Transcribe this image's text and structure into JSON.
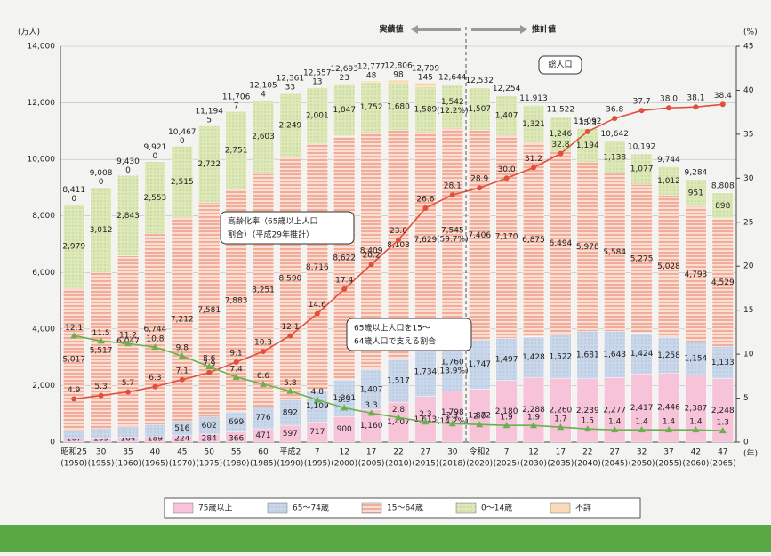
{
  "chart_data": {
    "type": "bar",
    "stacked": true,
    "y_unit": "(万人)",
    "y2_unit": "(%)",
    "x_unit": "(年)",
    "actual_label": "実績値",
    "projected_label": "推計値",
    "total_callout": "総人口",
    "aging_callout": [
      "高齢化率（65歳以上人口",
      "割合）（平成29年推計）"
    ],
    "support_callout": [
      "65歳以上人口を15～",
      "64歳人口で支える割合"
    ],
    "categories": [
      "昭和25",
      "30",
      "35",
      "40",
      "45",
      "50",
      "55",
      "60",
      "平成2",
      "7",
      "12",
      "17",
      "22",
      "27",
      "30",
      "令和2",
      "7",
      "12",
      "17",
      "22",
      "27",
      "32",
      "37",
      "42",
      "47"
    ],
    "category_years": [
      "(1950)",
      "(1955)",
      "(1960)",
      "(1965)",
      "(1970)",
      "(1975)",
      "(1980)",
      "(1985)",
      "(1990)",
      "(1995)",
      "(2000)",
      "(2005)",
      "(2010)",
      "(2015)",
      "(2018)",
      "(2020)",
      "(2025)",
      "(2030)",
      "(2035)",
      "(2040)",
      "(2045)",
      "(2050)",
      "(2055)",
      "(2060)",
      "(2065)"
    ],
    "totals": [
      8411,
      9008,
      9430,
      9921,
      10467,
      11194,
      11706,
      12105,
      12361,
      12557,
      12693,
      12777,
      12806,
      12709,
      12644,
      12532,
      12254,
      11913,
      11522,
      11092,
      10642,
      10192,
      9744,
      9284,
      8808
    ],
    "total_labels": [
      "8,411",
      "9,008",
      "9,430",
      "9,921",
      "10,467",
      "11,194",
      "11,706",
      "12,105",
      "12,361",
      "12,557",
      "12,693",
      "12,777",
      "12,806",
      "12,709",
      "12,644",
      "12,532",
      "12,254",
      "11,913",
      "11,522",
      "11,092",
      "10,642",
      "10,192",
      "9,744",
      "9,284",
      "8,808"
    ],
    "share_labels_2018": [
      "(14.2%)",
      "(13.9%)",
      "(59.7%)",
      "(12.2%)"
    ],
    "series": [
      {
        "name": "75歳以上",
        "type": "bar",
        "color": "#f6c3d9",
        "pattern": "none",
        "values": [
          107,
          139,
          164,
          189,
          224,
          284,
          366,
          471,
          597,
          717,
          900,
          1160,
          1407,
          1613,
          1798,
          1872,
          2180,
          2288,
          2260,
          2239,
          2277,
          2417,
          2446,
          2387,
          2248
        ],
        "value_labels": [
          "107",
          "139",
          "164",
          "189",
          "224",
          "284",
          "366",
          "471",
          "597",
          "717",
          "900",
          "1,160",
          "1,407",
          "1,613",
          "1,798",
          "1,872",
          "2,180",
          "2,288",
          "2,260",
          "2,239",
          "2,277",
          "2,417",
          "2,446",
          "2,387",
          "2,248"
        ]
      },
      {
        "name": "65～74歳",
        "type": "bar",
        "color": "#c9d7ee",
        "pattern": "dots",
        "values": [
          309,
          338,
          376,
          434,
          516,
          602,
          699,
          776,
          892,
          1109,
          1301,
          1407,
          1517,
          1734,
          1760,
          1747,
          1497,
          1428,
          1522,
          1681,
          1643,
          1424,
          1258,
          1154,
          1133
        ],
        "value_labels": [
          "309",
          "338",
          "376",
          "434",
          "516",
          "602",
          "699",
          "776",
          "892",
          "1,109",
          "1,301",
          "1,407",
          "1,517",
          "1,734",
          "1,760",
          "1,747",
          "1,497",
          "1,428",
          "1,522",
          "1,681",
          "1,643",
          "1,424",
          "1,258",
          "1,154",
          "1,133"
        ]
      },
      {
        "name": "15～64歳",
        "type": "bar",
        "color": "#f2ad99",
        "pattern": "stripes",
        "values": [
          5017,
          5517,
          6047,
          6744,
          7212,
          7581,
          7883,
          8251,
          8590,
          8716,
          8622,
          8409,
          8103,
          7629,
          7545,
          7406,
          7170,
          6875,
          6494,
          5978,
          5584,
          5275,
          5028,
          4793,
          4529
        ],
        "value_labels": [
          "5,017",
          "5,517",
          "6,047",
          "6,744",
          "7,212",
          "7,581",
          "7,883",
          "8,251",
          "8,590",
          "8,716",
          "8,622",
          "8,409",
          "8,103",
          "7,629",
          "7,545",
          "7,406",
          "7,170",
          "6,875",
          "6,494",
          "5,978",
          "5,584",
          "5,275",
          "5,028",
          "4,793",
          "4,529"
        ]
      },
      {
        "name": "0～14歳",
        "type": "bar",
        "color": "#dce9b6",
        "pattern": "dots",
        "values": [
          2979,
          3012,
          2843,
          2553,
          2515,
          2722,
          2751,
          2603,
          2249,
          2001,
          1847,
          1752,
          1680,
          1589,
          1542,
          1507,
          1407,
          1321,
          1246,
          1194,
          1138,
          1077,
          1012,
          951,
          898
        ],
        "value_labels": [
          "2,979",
          "3,012",
          "2,843",
          "2,553",
          "2,515",
          "2,722",
          "2,751",
          "2,603",
          "2,249",
          "2,001",
          "1,847",
          "1,752",
          "1,680",
          "1,589",
          "1,542",
          "1,507",
          "1,407",
          "1,321",
          "1,246",
          "1,194",
          "1,138",
          "1,077",
          "1,012",
          "951",
          "898"
        ]
      },
      {
        "name": "不詳",
        "type": "bar",
        "color": "#f9dcb6",
        "pattern": "none",
        "values": [
          0,
          0,
          0,
          0,
          0,
          5,
          7,
          4,
          33,
          13,
          23,
          48,
          98,
          145,
          null,
          null,
          null,
          null,
          null,
          null,
          null,
          null,
          null,
          null,
          null
        ]
      },
      {
        "type": "line",
        "axis": "y2",
        "color": "#e0503c",
        "marker": "circle",
        "values": [
          4.9,
          5.3,
          5.7,
          6.3,
          7.1,
          7.9,
          9.1,
          10.3,
          12.1,
          14.6,
          17.4,
          20.2,
          23.0,
          26.6,
          28.1,
          28.9,
          30.0,
          31.2,
          32.8,
          35.3,
          36.8,
          37.7,
          38.0,
          38.1,
          38.4
        ],
        "value_labels": [
          "4.9",
          "5.3",
          "5.7",
          "6.3",
          "7.1",
          "7.9",
          "9.1",
          "10.3",
          "12.1",
          "14.6",
          "17.4",
          "20.2",
          "23.0",
          "26.6",
          "28.1",
          "28.9",
          "30.0",
          "31.2",
          "32.8",
          "35.3",
          "36.8",
          "37.7",
          "38.0",
          "38.1",
          "38.4"
        ]
      },
      {
        "type": "line",
        "axis": "y2",
        "color": "#6ab04c",
        "marker": "triangle",
        "values": [
          12.1,
          11.5,
          11.2,
          10.8,
          9.8,
          8.6,
          7.4,
          6.6,
          5.8,
          4.8,
          3.9,
          3.3,
          2.8,
          2.3,
          2.1,
          2.0,
          1.9,
          1.9,
          1.7,
          1.5,
          1.4,
          1.4,
          1.4,
          1.4,
          1.3
        ],
        "value_labels": [
          "12.1",
          "11.5",
          "11.2",
          "10.8",
          "9.8",
          "8.6",
          "7.4",
          "6.6",
          "5.8",
          "4.8",
          "3.9",
          "3.3",
          "2.8",
          "2.3",
          "2.1",
          "2.0",
          "1.9",
          "1.9",
          "1.7",
          "1.5",
          "1.4",
          "1.4",
          "1.4",
          "1.4",
          "1.3"
        ]
      }
    ],
    "ylim": [
      0,
      14000
    ],
    "yticks": [
      0,
      {
        "value": 2000,
        "label": "2,000"
      },
      {
        "value": 4000,
        "label": "4,000"
      },
      {
        "value": 6000,
        "label": "6,000"
      },
      {
        "value": 8000,
        "label": "8,000"
      },
      {
        "value": 10000,
        "label": "10,000"
      },
      {
        "value": 12000,
        "label": "12,000"
      },
      {
        "value": 14000,
        "label": "14,000"
      }
    ],
    "y2lim": [
      0,
      45
    ],
    "y2ticks": [
      0,
      5,
      10,
      15,
      20,
      25,
      30,
      35,
      40,
      45
    ],
    "grid": true
  }
}
